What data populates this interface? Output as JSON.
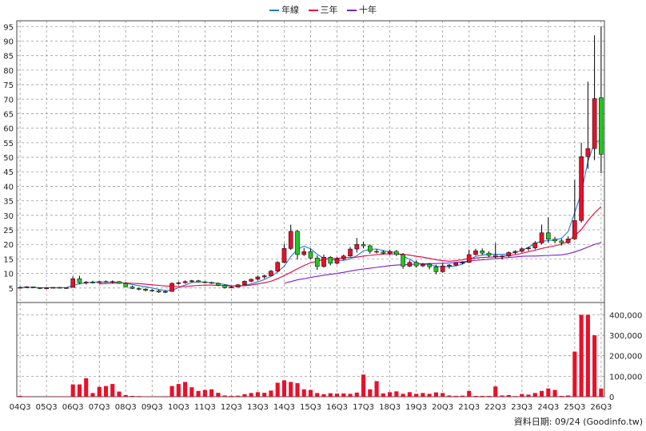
{
  "legend": [
    {
      "label": "年線",
      "color": "#1f77d4"
    },
    {
      "label": "三年",
      "color": "#e8003c"
    },
    {
      "label": "十年",
      "color": "#7b1fd8"
    }
  ],
  "footnote": "資料日期: 09/24  (Goodinfo.tw)",
  "colors": {
    "up": "#e8102a",
    "down": "#20c820",
    "wick": "#000000",
    "volume": "#e8102a",
    "grid": "#9a9a9a"
  },
  "chart_data": [
    {
      "type": "candlestick",
      "title": "",
      "ylim": [
        0,
        97
      ],
      "yticks": [
        5,
        10,
        15,
        20,
        25,
        30,
        35,
        40,
        45,
        50,
        55,
        60,
        65,
        70,
        75,
        80,
        85,
        90,
        95
      ],
      "xticks": [
        "04Q3",
        "05Q3",
        "06Q3",
        "07Q3",
        "08Q3",
        "09Q3",
        "10Q3",
        "11Q3",
        "12Q3",
        "13Q3",
        "14Q3",
        "15Q3",
        "16Q3",
        "17Q3",
        "18Q3",
        "19Q3",
        "20Q3",
        "21Q3",
        "22Q3",
        "23Q3",
        "24Q3",
        "25Q3",
        "26Q3"
      ],
      "x_start": 2004.5,
      "x_step": 0.25,
      "ohlc": [
        [
          5,
          5.5,
          4.8,
          5.2
        ],
        [
          5.2,
          5.6,
          5,
          5.4
        ],
        [
          5.4,
          5.5,
          5,
          5.1
        ],
        [
          5.1,
          5.2,
          4.6,
          4.8
        ],
        [
          4.8,
          5.2,
          4.7,
          5
        ],
        [
          5,
          5.3,
          4.9,
          5.2
        ],
        [
          5.2,
          5.4,
          4.9,
          5
        ],
        [
          5,
          5.2,
          4.7,
          5.1
        ],
        [
          5.2,
          9,
          5.1,
          8.2
        ],
        [
          8.2,
          9.2,
          6.4,
          6.8
        ],
        [
          6.8,
          7.4,
          6.2,
          7
        ],
        [
          7,
          7.5,
          6.5,
          6.8
        ],
        [
          6.8,
          7.4,
          6.6,
          7.2
        ],
        [
          7.2,
          7.6,
          6.8,
          7
        ],
        [
          7,
          7.6,
          6.6,
          7.2
        ],
        [
          7.2,
          7.4,
          6.4,
          6.6
        ],
        [
          6.6,
          7,
          5.2,
          5.4
        ],
        [
          5.4,
          5.8,
          4.6,
          4.8
        ],
        [
          4.8,
          5.2,
          4.2,
          4.6
        ],
        [
          4.6,
          5,
          3.8,
          4.2
        ],
        [
          4.2,
          4.6,
          3.6,
          4
        ],
        [
          4,
          4.4,
          3.3,
          3.6
        ],
        [
          3.6,
          4.2,
          3.2,
          3.8
        ],
        [
          3.8,
          6.9,
          3.7,
          6.6
        ],
        [
          6.6,
          7.2,
          6.2,
          6.8
        ],
        [
          6.8,
          7.6,
          6.5,
          7.2
        ],
        [
          7.2,
          7.8,
          6.8,
          7.5
        ],
        [
          7.5,
          7.8,
          6.9,
          7.1
        ],
        [
          7.1,
          7.4,
          6.6,
          6.9
        ],
        [
          6.9,
          7.2,
          6.4,
          6.6
        ],
        [
          6.6,
          6.9,
          5.6,
          5.9
        ],
        [
          5.9,
          6.2,
          4.8,
          5.1
        ],
        [
          5.1,
          5.6,
          4.9,
          5.3
        ],
        [
          5.3,
          6.4,
          5.2,
          6.1
        ],
        [
          6.1,
          7.6,
          5.9,
          7.3
        ],
        [
          7.3,
          8.2,
          7,
          8
        ],
        [
          8,
          9.2,
          7.6,
          8.8
        ],
        [
          8.8,
          9.6,
          8.2,
          9.2
        ],
        [
          9.2,
          11.2,
          9,
          10.8
        ],
        [
          10.8,
          14.2,
          10.4,
          13.8
        ],
        [
          13.8,
          20.2,
          13.5,
          18.6
        ],
        [
          18.6,
          26.8,
          18.1,
          24.5
        ],
        [
          24.5,
          25,
          14.8,
          16.5
        ],
        [
          16.5,
          18.8,
          16,
          17.5
        ],
        [
          17.5,
          18.5,
          14.8,
          15.3
        ],
        [
          15.3,
          16.2,
          11.2,
          12.4
        ],
        [
          12.4,
          16.5,
          12,
          15.6
        ],
        [
          15.6,
          16,
          12.8,
          13.5
        ],
        [
          13.5,
          15.6,
          13.1,
          15
        ],
        [
          15,
          16.5,
          14.6,
          16
        ],
        [
          16,
          19.1,
          15.7,
          18.4
        ],
        [
          18.4,
          22.2,
          17.2,
          20
        ],
        [
          20,
          20.9,
          18.6,
          19.5
        ],
        [
          19.5,
          20,
          16.8,
          17.6
        ],
        [
          17.6,
          18.3,
          16.9,
          17.4
        ],
        [
          17.4,
          18,
          16.5,
          17
        ],
        [
          17,
          18.2,
          16.3,
          17.6
        ],
        [
          17.6,
          18.1,
          16,
          16.5
        ],
        [
          16.5,
          17,
          11.6,
          12.5
        ],
        [
          12.5,
          14.5,
          12.2,
          13.8
        ],
        [
          13.8,
          14.5,
          12,
          12.6
        ],
        [
          12.6,
          13.6,
          12.2,
          13.2
        ],
        [
          13.2,
          13.6,
          11.4,
          12.3
        ],
        [
          12.3,
          13,
          9.7,
          10.6
        ],
        [
          10.6,
          13.6,
          10.2,
          12.6
        ],
        [
          12.6,
          13.2,
          11.6,
          12.9
        ],
        [
          12.9,
          13.8,
          12.5,
          13.6
        ],
        [
          13.6,
          14.2,
          13.2,
          13.8
        ],
        [
          13.8,
          18.2,
          13.6,
          16.5
        ],
        [
          16.5,
          18.5,
          16.2,
          17.8
        ],
        [
          17.8,
          18.6,
          16.4,
          17
        ],
        [
          17,
          17.6,
          15.6,
          16.2
        ],
        [
          16.2,
          20.5,
          15.1,
          15.8
        ],
        [
          15.8,
          16.3,
          14.8,
          16
        ],
        [
          16,
          17.6,
          15.6,
          17.2
        ],
        [
          17.2,
          18,
          16.6,
          17.6
        ],
        [
          17.6,
          18.9,
          17.2,
          18.5
        ],
        [
          18.5,
          19.2,
          17.8,
          18.8
        ],
        [
          18.8,
          21.2,
          18.3,
          20.5
        ],
        [
          20.5,
          26.8,
          20,
          24
        ],
        [
          24,
          29.3,
          20.6,
          21.8
        ],
        [
          21.8,
          22.6,
          20.4,
          21.2
        ],
        [
          21.2,
          22,
          19.6,
          20.6
        ],
        [
          20.6,
          22.8,
          20.2,
          21.9
        ],
        [
          21.9,
          42.2,
          21.5,
          28.2
        ],
        [
          28.2,
          55,
          27.5,
          50.2
        ],
        [
          50.2,
          76,
          46,
          53
        ],
        [
          53,
          92,
          49,
          70.2
        ],
        [
          70.5,
          95,
          44.5,
          51
        ]
      ],
      "volume": [
        4000,
        2000,
        500,
        500,
        1500,
        1000,
        2000,
        1500,
        60000,
        60000,
        90000,
        18000,
        48000,
        52000,
        62000,
        25000,
        8000,
        4000,
        3000,
        2000,
        1500,
        1000,
        2500,
        52000,
        62000,
        72000,
        46000,
        28000,
        33000,
        36000,
        19000,
        6000,
        4000,
        5000,
        12000,
        18000,
        22000,
        19000,
        30000,
        68000,
        80000,
        72000,
        66000,
        36000,
        33000,
        18000,
        12000,
        17000,
        15000,
        16000,
        14000,
        20000,
        108000,
        36000,
        76000,
        16000,
        22000,
        26000,
        14000,
        22000,
        14000,
        18000,
        14000,
        21000,
        18000,
        6000,
        4000,
        5000,
        28000,
        4000,
        4000,
        4000,
        50000,
        6000,
        8000,
        3000,
        13000,
        10000,
        18000,
        28000,
        40000,
        33000,
        4000,
        6000,
        220000,
        400000,
        400000,
        300000,
        40000
      ],
      "series": [
        {
          "name": "年線",
          "color": "#1f77d4",
          "values": [
            5.2,
            5.2,
            5.2,
            5.1,
            5.1,
            5.1,
            5.1,
            5.1,
            5.9,
            6.4,
            6.8,
            7,
            7,
            7,
            7,
            7,
            6.6,
            6.2,
            5.8,
            5.4,
            5,
            4.5,
            4.1,
            4.2,
            5.1,
            6,
            6.9,
            7.1,
            7,
            6.8,
            6.6,
            6.2,
            5.8,
            5.7,
            5.9,
            6.4,
            7.1,
            7.9,
            9,
            10.5,
            12.5,
            15.8,
            18.3,
            19.4,
            18.5,
            16.6,
            15.2,
            14.9,
            14.4,
            14.5,
            15,
            16.1,
            17.8,
            18.3,
            18.4,
            17.9,
            17.4,
            17.2,
            16,
            14.9,
            13.6,
            13.2,
            13.1,
            12.5,
            12.2,
            12.4,
            12.6,
            13.2,
            14.6,
            15.9,
            16.3,
            16.6,
            16.6,
            16.6,
            16.6,
            17.3,
            17.9,
            19,
            20.4,
            21.1,
            21.3,
            21.6,
            22.1,
            24.4,
            30.9,
            37.8,
            48.6,
            55.1,
            56
          ]
        },
        {
          "name": "三年",
          "color": "#e8003c",
          "values": [
            null,
            null,
            null,
            null,
            null,
            null,
            null,
            null,
            null,
            null,
            null,
            null,
            6.4,
            6.5,
            6.6,
            6.7,
            6.7,
            6.6,
            6.5,
            6.3,
            6.1,
            5.9,
            5.7,
            5.6,
            5.5,
            5.5,
            5.7,
            5.9,
            6,
            6,
            5.9,
            5.8,
            5.7,
            5.7,
            5.8,
            6,
            6.4,
            6.8,
            7.3,
            8.2,
            9.3,
            10.4,
            11.6,
            12.7,
            13.7,
            14.2,
            14.8,
            15.1,
            15.2,
            15.4,
            15.5,
            15.6,
            16,
            16.2,
            16.5,
            16.7,
            16.7,
            16.7,
            16.6,
            16.3,
            15.9,
            15.6,
            15.2,
            14.7,
            14.4,
            14.2,
            14.4,
            14.7,
            15.2,
            15.3,
            15.5,
            15.6,
            15.7,
            15.9,
            16.1,
            16.5,
            16.9,
            17.5,
            18,
            18.6,
            19.1,
            19.5,
            20.1,
            21.1,
            23,
            25.1,
            28.2,
            30.8,
            33
          ]
        },
        {
          "name": "十年",
          "color": "#7b1fd8",
          "values": [
            null,
            null,
            null,
            null,
            null,
            null,
            null,
            null,
            null,
            null,
            null,
            null,
            null,
            null,
            null,
            null,
            null,
            null,
            null,
            null,
            null,
            null,
            null,
            null,
            null,
            null,
            null,
            null,
            null,
            null,
            null,
            null,
            null,
            null,
            null,
            null,
            null,
            null,
            null,
            null,
            6.6,
            7.2,
            7.8,
            8.2,
            8.6,
            9,
            9.4,
            9.7,
            10,
            10.4,
            10.8,
            11.2,
            11.5,
            11.8,
            12.1,
            12.4,
            12.7,
            12.9,
            13,
            13.1,
            13.2,
            13.3,
            13.4,
            13.4,
            13.5,
            13.6,
            13.8,
            14,
            14.3,
            14.5,
            14.7,
            14.9,
            15.1,
            15.3,
            15.5,
            15.7,
            15.9,
            16,
            16,
            16.1,
            16.2,
            16.3,
            16.4,
            16.8,
            17.4,
            18.2,
            19.1,
            20,
            20.6
          ]
        }
      ]
    },
    {
      "type": "bar",
      "title": "",
      "ylim": [
        0,
        460000
      ],
      "ytick_labels": [
        "400,000",
        "300,000",
        "200,000",
        "100,000",
        "0"
      ],
      "yticks": [
        400000,
        300000,
        200000,
        100000,
        0
      ]
    }
  ]
}
